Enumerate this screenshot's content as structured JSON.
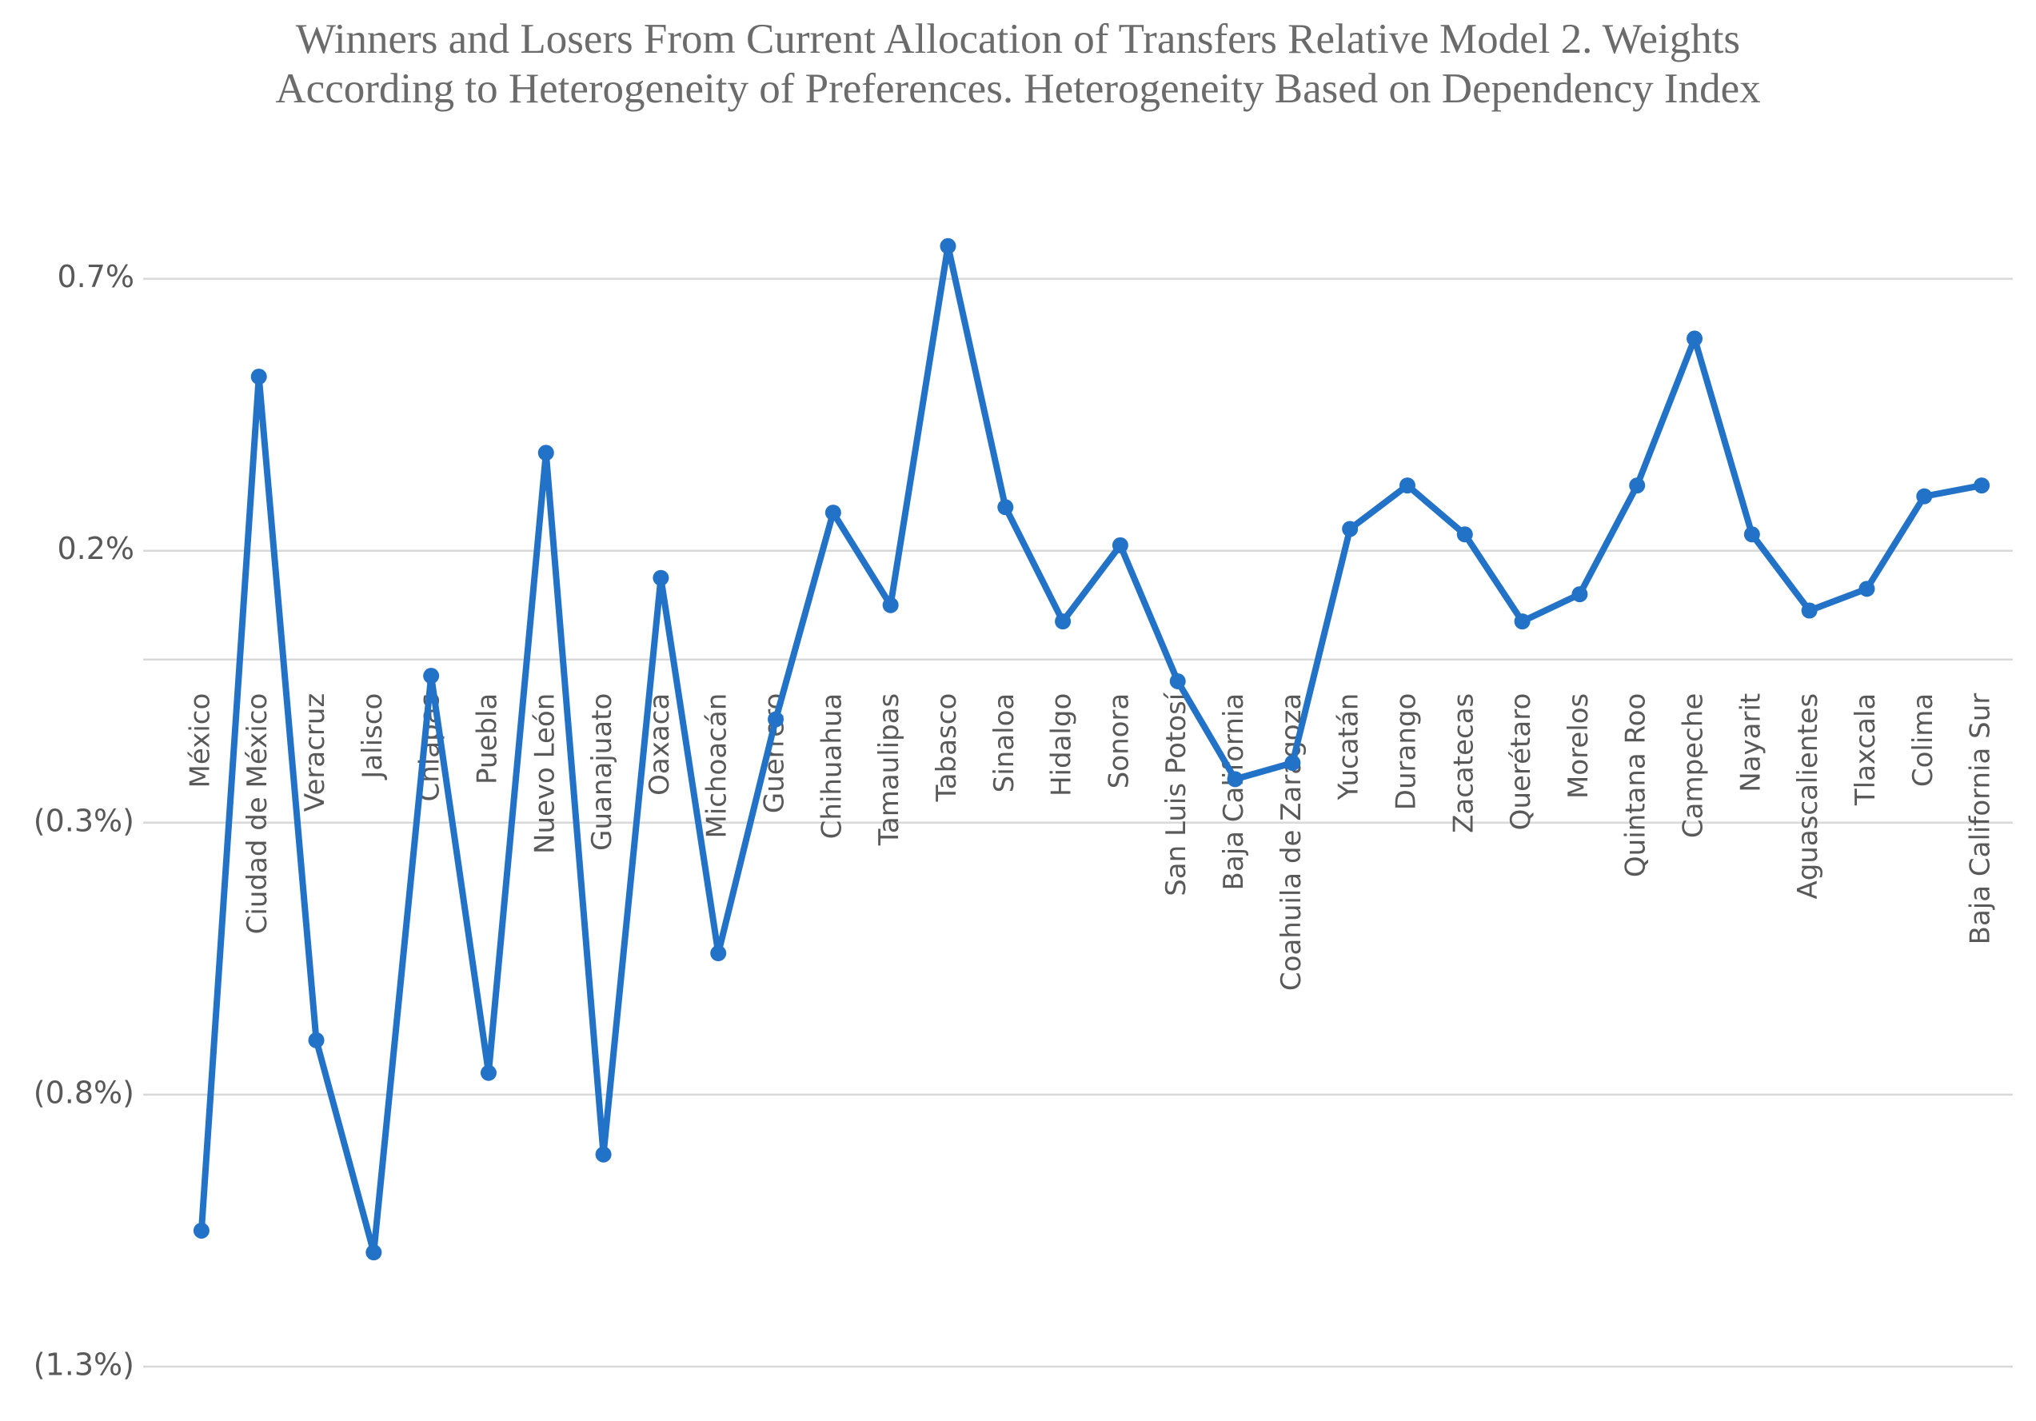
{
  "chart_data": {
    "type": "line",
    "title": "Winners and Losers From Current Allocation of Transfers Relative Model 2. Weights According to Heterogeneity of Preferences. Heterogeneity Based on Dependency Index",
    "categories": [
      "México",
      "Ciudad de México",
      "Veracruz",
      "Jalisco",
      "Chiapas",
      "Puebla",
      "Nuevo León",
      "Guanajuato",
      "Oaxaca",
      "Michoacán",
      "Guerrero",
      "Chihuahua",
      "Tamaulipas",
      "Tabasco",
      "Sinaloa",
      "Hidalgo",
      "Sonora",
      "San Luis Potosí",
      "Baja California",
      "Coahuila de Zaragoza",
      "Yucatán",
      "Durango",
      "Zacatecas",
      "Querétaro",
      "Morelos",
      "Quintana Roo",
      "Campeche",
      "Nayarit",
      "Aguascalientes",
      "Tlaxcala",
      "Colima",
      "Baja California Sur"
    ],
    "series": [
      {
        "color": "#2272c8",
        "values": [
          -1.05,
          0.52,
          -0.7,
          -1.09,
          -0.03,
          -0.76,
          0.38,
          -0.91,
          0.15,
          -0.54,
          -0.11,
          0.27,
          0.1,
          0.76,
          0.28,
          0.07,
          0.21,
          -0.04,
          -0.22,
          -0.19,
          0.24,
          0.32,
          0.23,
          0.07,
          0.12,
          0.32,
          0.59,
          0.23,
          0.09,
          0.13,
          0.3,
          0.32
        ]
      }
    ],
    "ylim": [
      -1.3,
      0.8
    ],
    "yticks": [
      {
        "value": 0.7,
        "label": "0.7%"
      },
      {
        "value": 0.2,
        "label": "0.2%"
      },
      {
        "value": -0.3,
        "label": "(0.3%)"
      },
      {
        "value": -0.8,
        "label": "(0.8%)"
      },
      {
        "value": -1.3,
        "label": "(1.3%)"
      }
    ],
    "grid": true
  }
}
